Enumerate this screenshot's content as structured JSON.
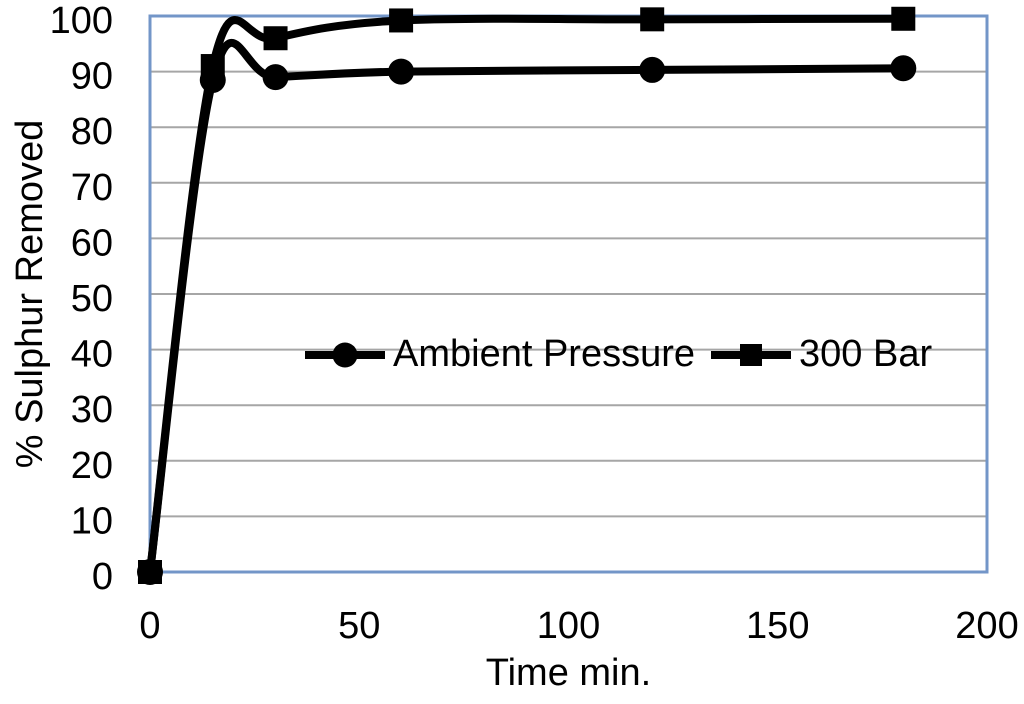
{
  "chart_data": {
    "type": "line",
    "title": "",
    "xlabel": "Time min.",
    "ylabel": "% Sulphur Removed",
    "x": [
      0,
      15,
      30,
      60,
      120,
      180
    ],
    "series": [
      {
        "name": "Ambient Pressure",
        "marker": "circle",
        "values": [
          0,
          88.5,
          89,
          90,
          90.3,
          90.6
        ]
      },
      {
        "name": "300 Bar",
        "marker": "square",
        "values": [
          0,
          91,
          96,
          99.2,
          99.4,
          99.5
        ]
      }
    ],
    "xlim": [
      0,
      200
    ],
    "ylim": [
      0,
      100
    ],
    "xticks": [
      0,
      50,
      100,
      150,
      200
    ],
    "yticks": [
      0,
      10,
      20,
      30,
      40,
      50,
      60,
      70,
      80,
      90,
      100
    ],
    "grid": "horizontal",
    "legend_position": "center-overlay",
    "smooth_lines": true,
    "colors": {
      "series_line": "#000000",
      "plot_border": "#7396C8",
      "gridline": "#A6A6A6",
      "background": "#FFFFFF",
      "text": "#000000"
    }
  }
}
